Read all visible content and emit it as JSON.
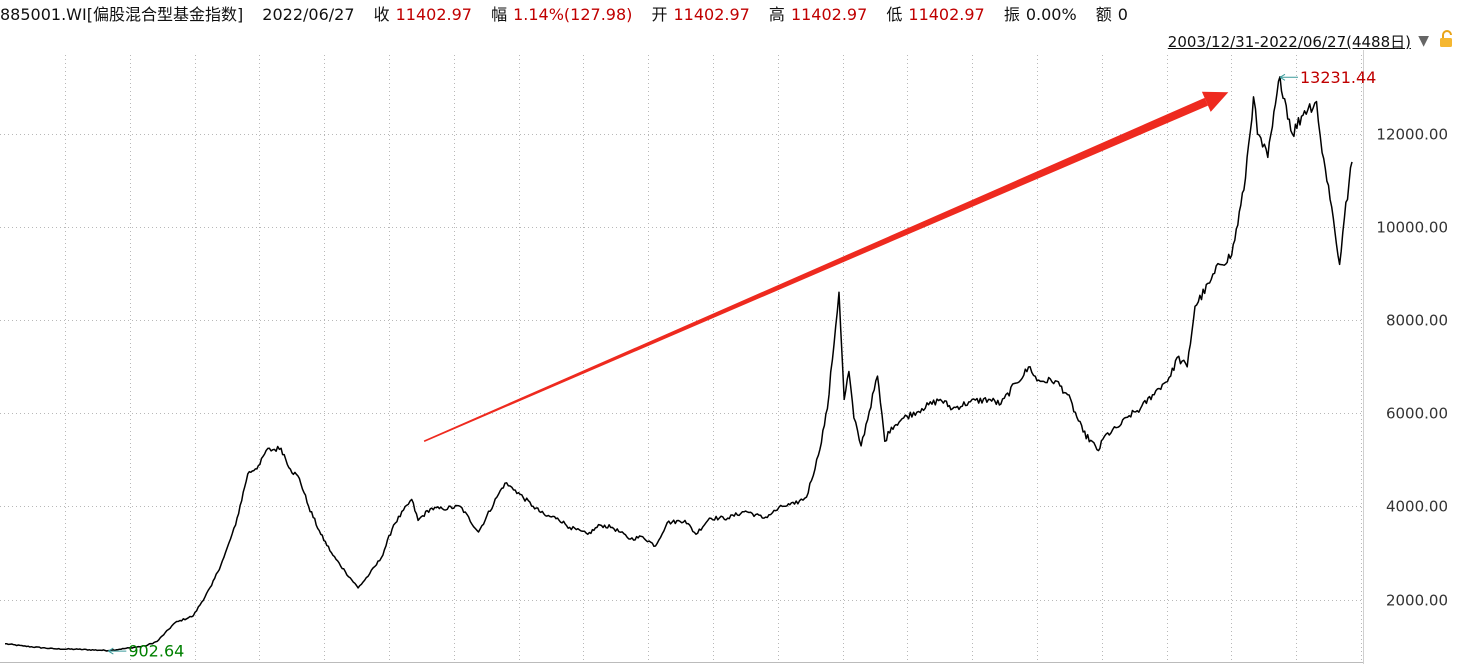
{
  "header": {
    "code_name": "885001.WI[偏股混合型基金指数]",
    "date": "2022/06/27",
    "close_label": "收",
    "close_value": "11402.97",
    "change_label": "幅",
    "change_value": "1.14%(127.98)",
    "open_label": "开",
    "open_value": "11402.97",
    "high_label": "高",
    "high_value": "11402.97",
    "low_label": "低",
    "low_value": "11402.97",
    "amp_label": "振",
    "amp_value": "0.00%",
    "amount_label": "额",
    "amount_value": "0"
  },
  "range_selector": {
    "label": "2003/12/31-2022/06/27(4488日)",
    "dropdown_icon": "triangle-down-icon",
    "lock_icon": "lock-icon"
  },
  "colors": {
    "line": "#000000",
    "grid": "#b8b8b8",
    "max_annotation": "#c00000",
    "min_annotation": "#008000",
    "arrow": "#ee2a1f",
    "axis_text": "#333333"
  },
  "chart_data": {
    "type": "line",
    "title": "",
    "xlabel": "",
    "ylabel": "",
    "x_range": [
      "2003-12-31",
      "2022-06-27"
    ],
    "ylim": [
      700,
      13700
    ],
    "y_ticks": [
      2000,
      4000,
      6000,
      8000,
      10000,
      12000
    ],
    "y_tick_labels": [
      "2000.00",
      "4000.00",
      "6000.00",
      "8000.00",
      "10000.00",
      "12000.00"
    ],
    "grid": true,
    "series": [
      {
        "x": [
          "2003-12-31",
          "2004-04-01",
          "2004-09-01",
          "2005-01-01",
          "2005-06-01",
          "2005-12-01",
          "2006-02-01",
          "2006-05-01",
          "2006-08-01",
          "2006-11-01",
          "2007-01-01",
          "2007-03-01",
          "2007-05-01",
          "2007-07-01",
          "2007-08-01",
          "2007-10-15",
          "2007-12-01",
          "2008-01-15",
          "2008-03-01",
          "2008-05-01",
          "2008-07-01",
          "2008-09-01",
          "2008-11-04",
          "2009-01-01",
          "2009-03-01",
          "2009-05-01",
          "2009-07-31",
          "2009-09-01",
          "2009-11-01",
          "2010-01-01",
          "2010-04-01",
          "2010-07-01",
          "2010-10-01",
          "2010-11-10",
          "2011-01-01",
          "2011-04-01",
          "2011-06-01",
          "2011-08-01",
          "2011-10-01",
          "2011-12-31",
          "2012-03-01",
          "2012-05-01",
          "2012-08-01",
          "2012-10-01",
          "2012-12-04",
          "2013-02-01",
          "2013-05-01",
          "2013-06-25",
          "2013-09-01",
          "2013-12-01",
          "2014-03-01",
          "2014-06-01",
          "2014-09-01",
          "2014-11-01",
          "2014-12-31",
          "2015-03-01",
          "2015-04-15",
          "2015-06-12",
          "2015-07-08",
          "2015-08-01",
          "2015-08-26",
          "2015-10-01",
          "2015-12-22",
          "2016-01-28",
          "2016-03-01",
          "2016-05-01",
          "2016-08-01",
          "2016-11-01",
          "2017-01-01",
          "2017-04-01",
          "2017-07-01",
          "2017-09-01",
          "2017-11-15",
          "2018-01-25",
          "2018-03-01",
          "2018-06-01",
          "2018-08-01",
          "2018-10-18",
          "2019-01-03",
          "2019-02-01",
          "2019-04-10",
          "2019-06-06",
          "2019-08-01",
          "2019-10-01",
          "2019-12-31",
          "2020-02-01",
          "2020-03-23",
          "2020-05-01",
          "2020-07-13",
          "2020-09-01",
          "2020-11-01",
          "2021-01-01",
          "2021-02-18",
          "2021-03-10",
          "2021-05-01",
          "2021-07-01",
          "2021-09-01",
          "2021-11-01",
          "2021-12-31",
          "2022-01-28",
          "2022-03-01",
          "2022-04-26",
          "2022-05-20",
          "2022-06-27"
        ],
        "y": [
          1050,
          1000,
          940,
          930,
          902.64,
          1000,
          1100,
          1500,
          1650,
          2300,
          2900,
          3600,
          4700,
          4900,
          5200,
          5250,
          4800,
          4600,
          4000,
          3400,
          2950,
          2600,
          2250,
          2550,
          2900,
          3600,
          4150,
          3700,
          3950,
          3950,
          4000,
          3450,
          4200,
          4500,
          4350,
          4000,
          3800,
          3750,
          3550,
          3400,
          3600,
          3550,
          3300,
          3350,
          3150,
          3650,
          3700,
          3400,
          3750,
          3750,
          3900,
          3750,
          4000,
          4050,
          4200,
          5100,
          6100,
          8600,
          6300,
          6900,
          5900,
          5300,
          6800,
          5400,
          5700,
          5900,
          6100,
          6300,
          6100,
          6250,
          6300,
          6200,
          6650,
          7000,
          6700,
          6700,
          6400,
          5600,
          5200,
          5500,
          5700,
          5950,
          6100,
          6400,
          6800,
          7200,
          7000,
          8300,
          8800,
          9200,
          9400,
          10800,
          12800,
          12000,
          11500,
          13231.44,
          12000,
          12500,
          12700,
          11600,
          10900,
          9200,
          10200,
          11402.97
        ]
      }
    ],
    "annotations": {
      "max": {
        "date": "2021-07-01",
        "value": 13231.44,
        "label": "13231.44"
      },
      "min": {
        "date": "2005-06-01",
        "value": 902.64,
        "label": "902.64"
      },
      "arrow": {
        "from": "2009-10-01",
        "from_value": 5400,
        "to": "2020-10-15",
        "to_value": 12900
      }
    }
  }
}
